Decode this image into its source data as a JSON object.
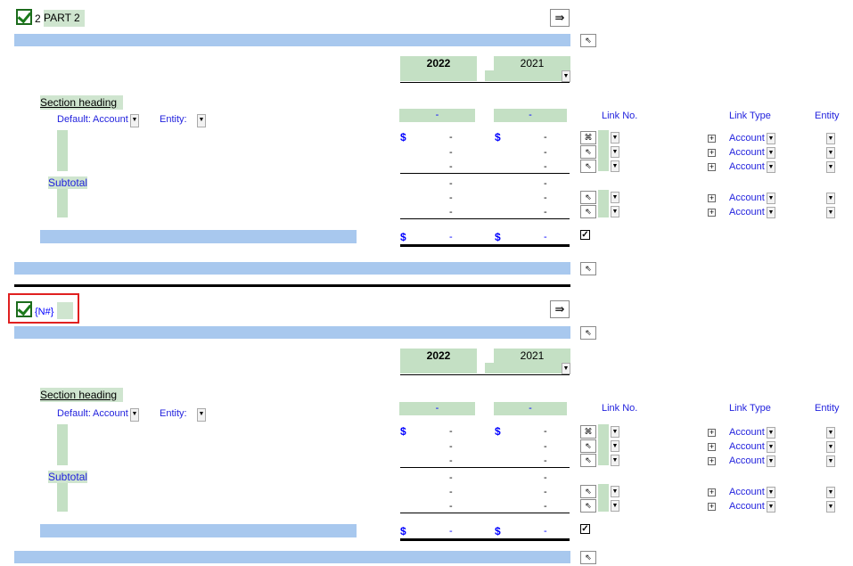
{
  "sections": [
    {
      "title_number": "2",
      "title_text": "PART 2",
      "year_current": "2022",
      "year_prior": "2021",
      "section_heading": "Section heading",
      "default_label": "Default:",
      "default_value": "Account",
      "entity_label": "Entity:",
      "subtotal_label": "Subtotal",
      "col_total_current": "-",
      "col_total_prior": "-",
      "link_no_header": "Link No.",
      "link_type_header": "Link Type",
      "entity_header": "Entity",
      "currency": "$",
      "dash": "-",
      "rows_group1": [
        {
          "cur": "-",
          "prior": "-",
          "link_type": "Account"
        },
        {
          "cur": "-",
          "prior": "-",
          "link_type": "Account"
        },
        {
          "cur": "-",
          "prior": "-",
          "link_type": "Account"
        }
      ],
      "rows_group2": [
        {
          "cur": "-",
          "prior": "-"
        },
        {
          "cur": "-",
          "prior": "-",
          "link_type": "Account"
        },
        {
          "cur": "-",
          "prior": "-",
          "link_type": "Account"
        }
      ],
      "grand_current": "-",
      "grand_prior": "-"
    },
    {
      "title_number": "",
      "title_text": "{N#}",
      "year_current": "2022",
      "year_prior": "2021",
      "section_heading": "Section heading",
      "default_label": "Default:",
      "default_value": "Account",
      "entity_label": "Entity:",
      "subtotal_label": "Subtotal",
      "col_total_current": "-",
      "col_total_prior": "-",
      "link_no_header": "Link No.",
      "link_type_header": "Link Type",
      "entity_header": "Entity",
      "currency": "$",
      "dash": "-",
      "rows_group1": [
        {
          "cur": "-",
          "prior": "-",
          "link_type": "Account"
        },
        {
          "cur": "-",
          "prior": "-",
          "link_type": "Account"
        },
        {
          "cur": "-",
          "prior": "-",
          "link_type": "Account"
        }
      ],
      "rows_group2": [
        {
          "cur": "-",
          "prior": "-"
        },
        {
          "cur": "-",
          "prior": "-",
          "link_type": "Account"
        },
        {
          "cur": "-",
          "prior": "-",
          "link_type": "Account"
        }
      ],
      "grand_current": "-",
      "grand_prior": "-"
    }
  ],
  "icons": {
    "insert_icon": "insert-rows-icon",
    "mouse_icon": "mouse-pointer-icon",
    "chain_icon": "command-icon"
  },
  "colors": {
    "bar_blue": "#a8c8ee",
    "cell_green": "#c4e0c4",
    "text_blue": "#0000ff",
    "highlight_red": "#e02020"
  }
}
